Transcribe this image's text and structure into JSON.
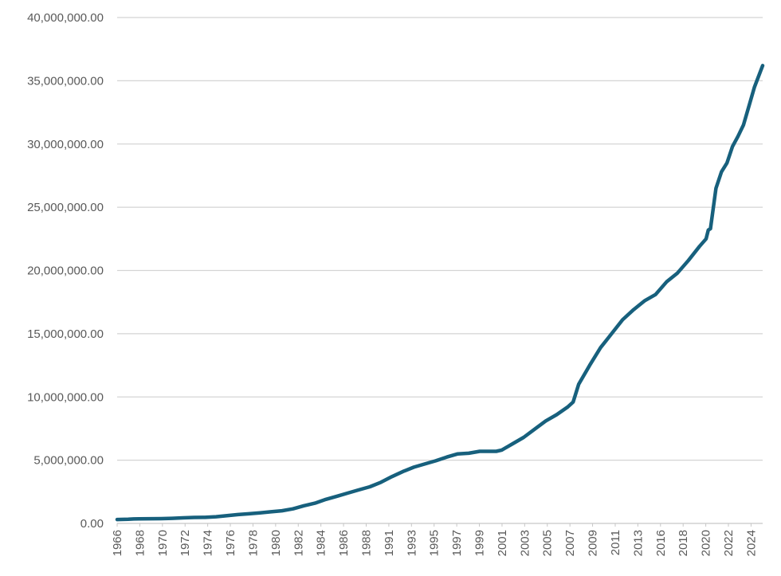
{
  "chart_data": {
    "type": "line",
    "title": "",
    "xlabel": "",
    "ylabel": "",
    "ylim": [
      0,
      40000000
    ],
    "xlim": [
      1966,
      2024.75
    ],
    "grid": "horizontal",
    "line_color": "#17607d",
    "y_ticks": [
      0,
      5000000,
      10000000,
      15000000,
      20000000,
      25000000,
      30000000,
      35000000,
      40000000
    ],
    "y_tick_labels": [
      "0.00",
      "5,000,000.00",
      "10,000,000.00",
      "15,000,000.00",
      "20,000,000.00",
      "25,000,000.00",
      "30,000,000.00",
      "35,000,000.00",
      "40,000,000.00"
    ],
    "x_tick_labels": [
      "1966",
      "1968",
      "1970",
      "1972",
      "1974",
      "1976",
      "1978",
      "1980",
      "1982",
      "1984",
      "1986",
      "1988",
      "1991",
      "1993",
      "1995",
      "1997",
      "1999",
      "2001",
      "2003",
      "2005",
      "2007",
      "2009",
      "2011",
      "2013",
      "2016",
      "2018",
      "2020",
      "2022",
      "2024"
    ],
    "series": [
      {
        "x": [
          1966,
          1967,
          1967.5,
          1968,
          1969,
          1970,
          1971,
          1972,
          1973,
          1974,
          1975,
          1976,
          1977,
          1978,
          1979,
          1980,
          1981,
          1982,
          1983,
          1984,
          1985,
          1986,
          1987,
          1988,
          1989,
          1990,
          1991,
          1992,
          1993,
          1994,
          1995,
          1996,
          1997,
          1998,
          1999,
          2000,
          2000.5,
          2001,
          2002,
          2003,
          2004,
          2005,
          2006,
          2007,
          2007.5,
          2008,
          2009,
          2010,
          2011,
          2012,
          2013,
          2014,
          2015,
          2016,
          2017,
          2018,
          2019,
          2019.6,
          2019.8,
          2020,
          2020.5,
          2021,
          2021.5,
          2022,
          2022.5,
          2023,
          2023.5,
          2024,
          2024.75
        ],
        "y": [
          310000,
          330000,
          350000,
          360000,
          370000,
          380000,
          400000,
          440000,
          470000,
          480000,
          530000,
          610000,
          700000,
          760000,
          830000,
          920000,
          1000000,
          1150000,
          1400000,
          1600000,
          1900000,
          2150000,
          2400000,
          2650000,
          2900000,
          3250000,
          3700000,
          4100000,
          4450000,
          4700000,
          4950000,
          5250000,
          5500000,
          5550000,
          5700000,
          5700000,
          5700000,
          5800000,
          6300000,
          6800000,
          7450000,
          8100000,
          8600000,
          9200000,
          9600000,
          11000000,
          12500000,
          13900000,
          15000000,
          16100000,
          16900000,
          17600000,
          18100000,
          19100000,
          19800000,
          20800000,
          21900000,
          22500000,
          23200000,
          23300000,
          26500000,
          27800000,
          28500000,
          29800000,
          30600000,
          31500000,
          33000000,
          34500000,
          36200000
        ]
      }
    ]
  }
}
